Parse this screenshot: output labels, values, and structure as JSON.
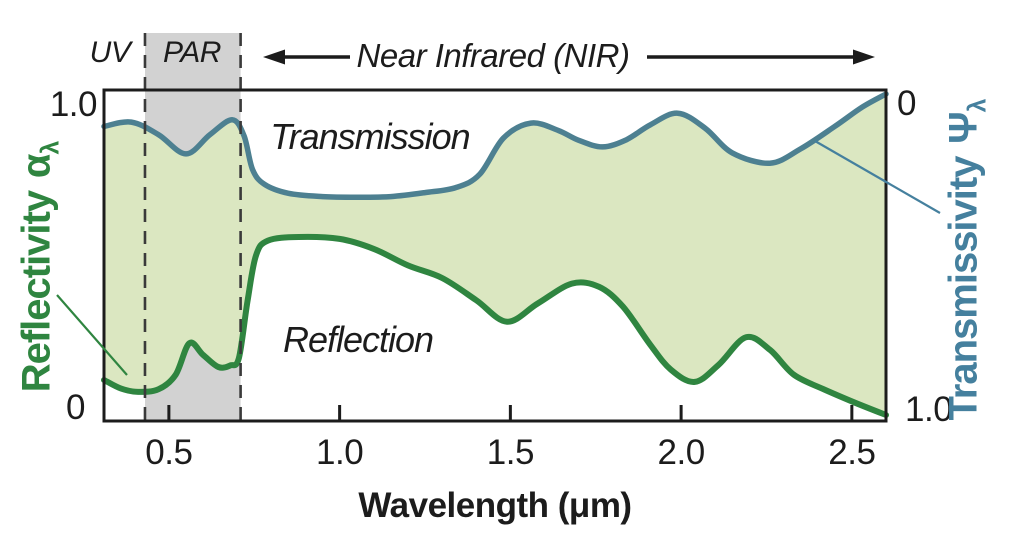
{
  "header": {
    "uv_label": "UV",
    "par_label": "PAR",
    "nir_label": "Near Infrared (NIR)"
  },
  "curve_labels": {
    "transmission": "Transmission",
    "reflection": "Reflection"
  },
  "axis_labels": {
    "x_title": "Wavelength (μm)",
    "left_word": "Reflectivity",
    "left_symbol": "α",
    "left_subscript": "λ",
    "right_word": "Transmissivity",
    "right_symbol": "Ψ",
    "right_subscript": "λ"
  },
  "tick_labels": {
    "x": [
      "0.5",
      "1.0",
      "1.5",
      "2.0",
      "2.5"
    ],
    "left_top": "1.0",
    "left_bottom": "0",
    "right_top": "0",
    "right_bottom": "1.0"
  },
  "colors": {
    "transmission_curve": "#4d8091",
    "reflection_curve": "#2f8540",
    "fill_between": "#dbe7c1",
    "par_band": "#d2d2d2",
    "left_axis_label": "#2f8540",
    "right_axis_label": "#45809e",
    "ink": "#1c1c1c"
  },
  "chart_data": {
    "type": "area",
    "title": "",
    "xlabel": "Wavelength (μm)",
    "x_range": [
      0.31,
      2.6
    ],
    "x_ticks": [
      0.5,
      1.0,
      1.5,
      2.0,
      2.5
    ],
    "y_left_axis": {
      "label": "Reflectivity αλ",
      "range": [
        0,
        1.0
      ],
      "orientation": "0 bottom, 1.0 top"
    },
    "y_right_axis": {
      "label": "Transmissivity Ψλ",
      "range": [
        0,
        1.0
      ],
      "orientation": "0 top, 1.0 bottom (inverted)"
    },
    "par_band_x": [
      0.43,
      0.71
    ],
    "grid": false,
    "series": [
      {
        "name": "Transmission",
        "axis": "values plotted on reflectivity scale (transmissivity = 1 - value)",
        "x": [
          0.31,
          0.39,
          0.47,
          0.55,
          0.62,
          0.685,
          0.72,
          0.745,
          0.78,
          0.85,
          0.95,
          1.05,
          1.15,
          1.25,
          1.34,
          1.41,
          1.48,
          1.56,
          1.64,
          1.7,
          1.77,
          1.84,
          1.91,
          1.99,
          2.07,
          2.15,
          2.26,
          2.35,
          2.45,
          2.53,
          2.6
        ],
        "y": [
          0.89,
          0.903,
          0.865,
          0.807,
          0.865,
          0.91,
          0.862,
          0.76,
          0.715,
          0.688,
          0.678,
          0.676,
          0.678,
          0.69,
          0.705,
          0.745,
          0.855,
          0.9,
          0.878,
          0.848,
          0.828,
          0.85,
          0.895,
          0.93,
          0.885,
          0.81,
          0.779,
          0.822,
          0.89,
          0.948,
          0.988
        ]
      },
      {
        "name": "Reflection",
        "axis": "left (reflectivity)",
        "x": [
          0.31,
          0.36,
          0.41,
          0.47,
          0.52,
          0.56,
          0.6,
          0.645,
          0.68,
          0.705,
          0.73,
          0.755,
          0.79,
          0.88,
          1.0,
          1.1,
          1.2,
          1.3,
          1.4,
          1.49,
          1.58,
          1.68,
          1.76,
          1.83,
          1.91,
          1.97,
          2.04,
          2.11,
          2.19,
          2.26,
          2.33,
          2.42,
          2.51,
          2.6
        ],
        "y": [
          0.124,
          0.098,
          0.088,
          0.096,
          0.14,
          0.235,
          0.2,
          0.163,
          0.168,
          0.19,
          0.36,
          0.5,
          0.545,
          0.556,
          0.55,
          0.52,
          0.47,
          0.432,
          0.365,
          0.3,
          0.355,
          0.415,
          0.405,
          0.345,
          0.23,
          0.155,
          0.118,
          0.17,
          0.253,
          0.215,
          0.14,
          0.095,
          0.055,
          0.018
        ]
      }
    ]
  }
}
